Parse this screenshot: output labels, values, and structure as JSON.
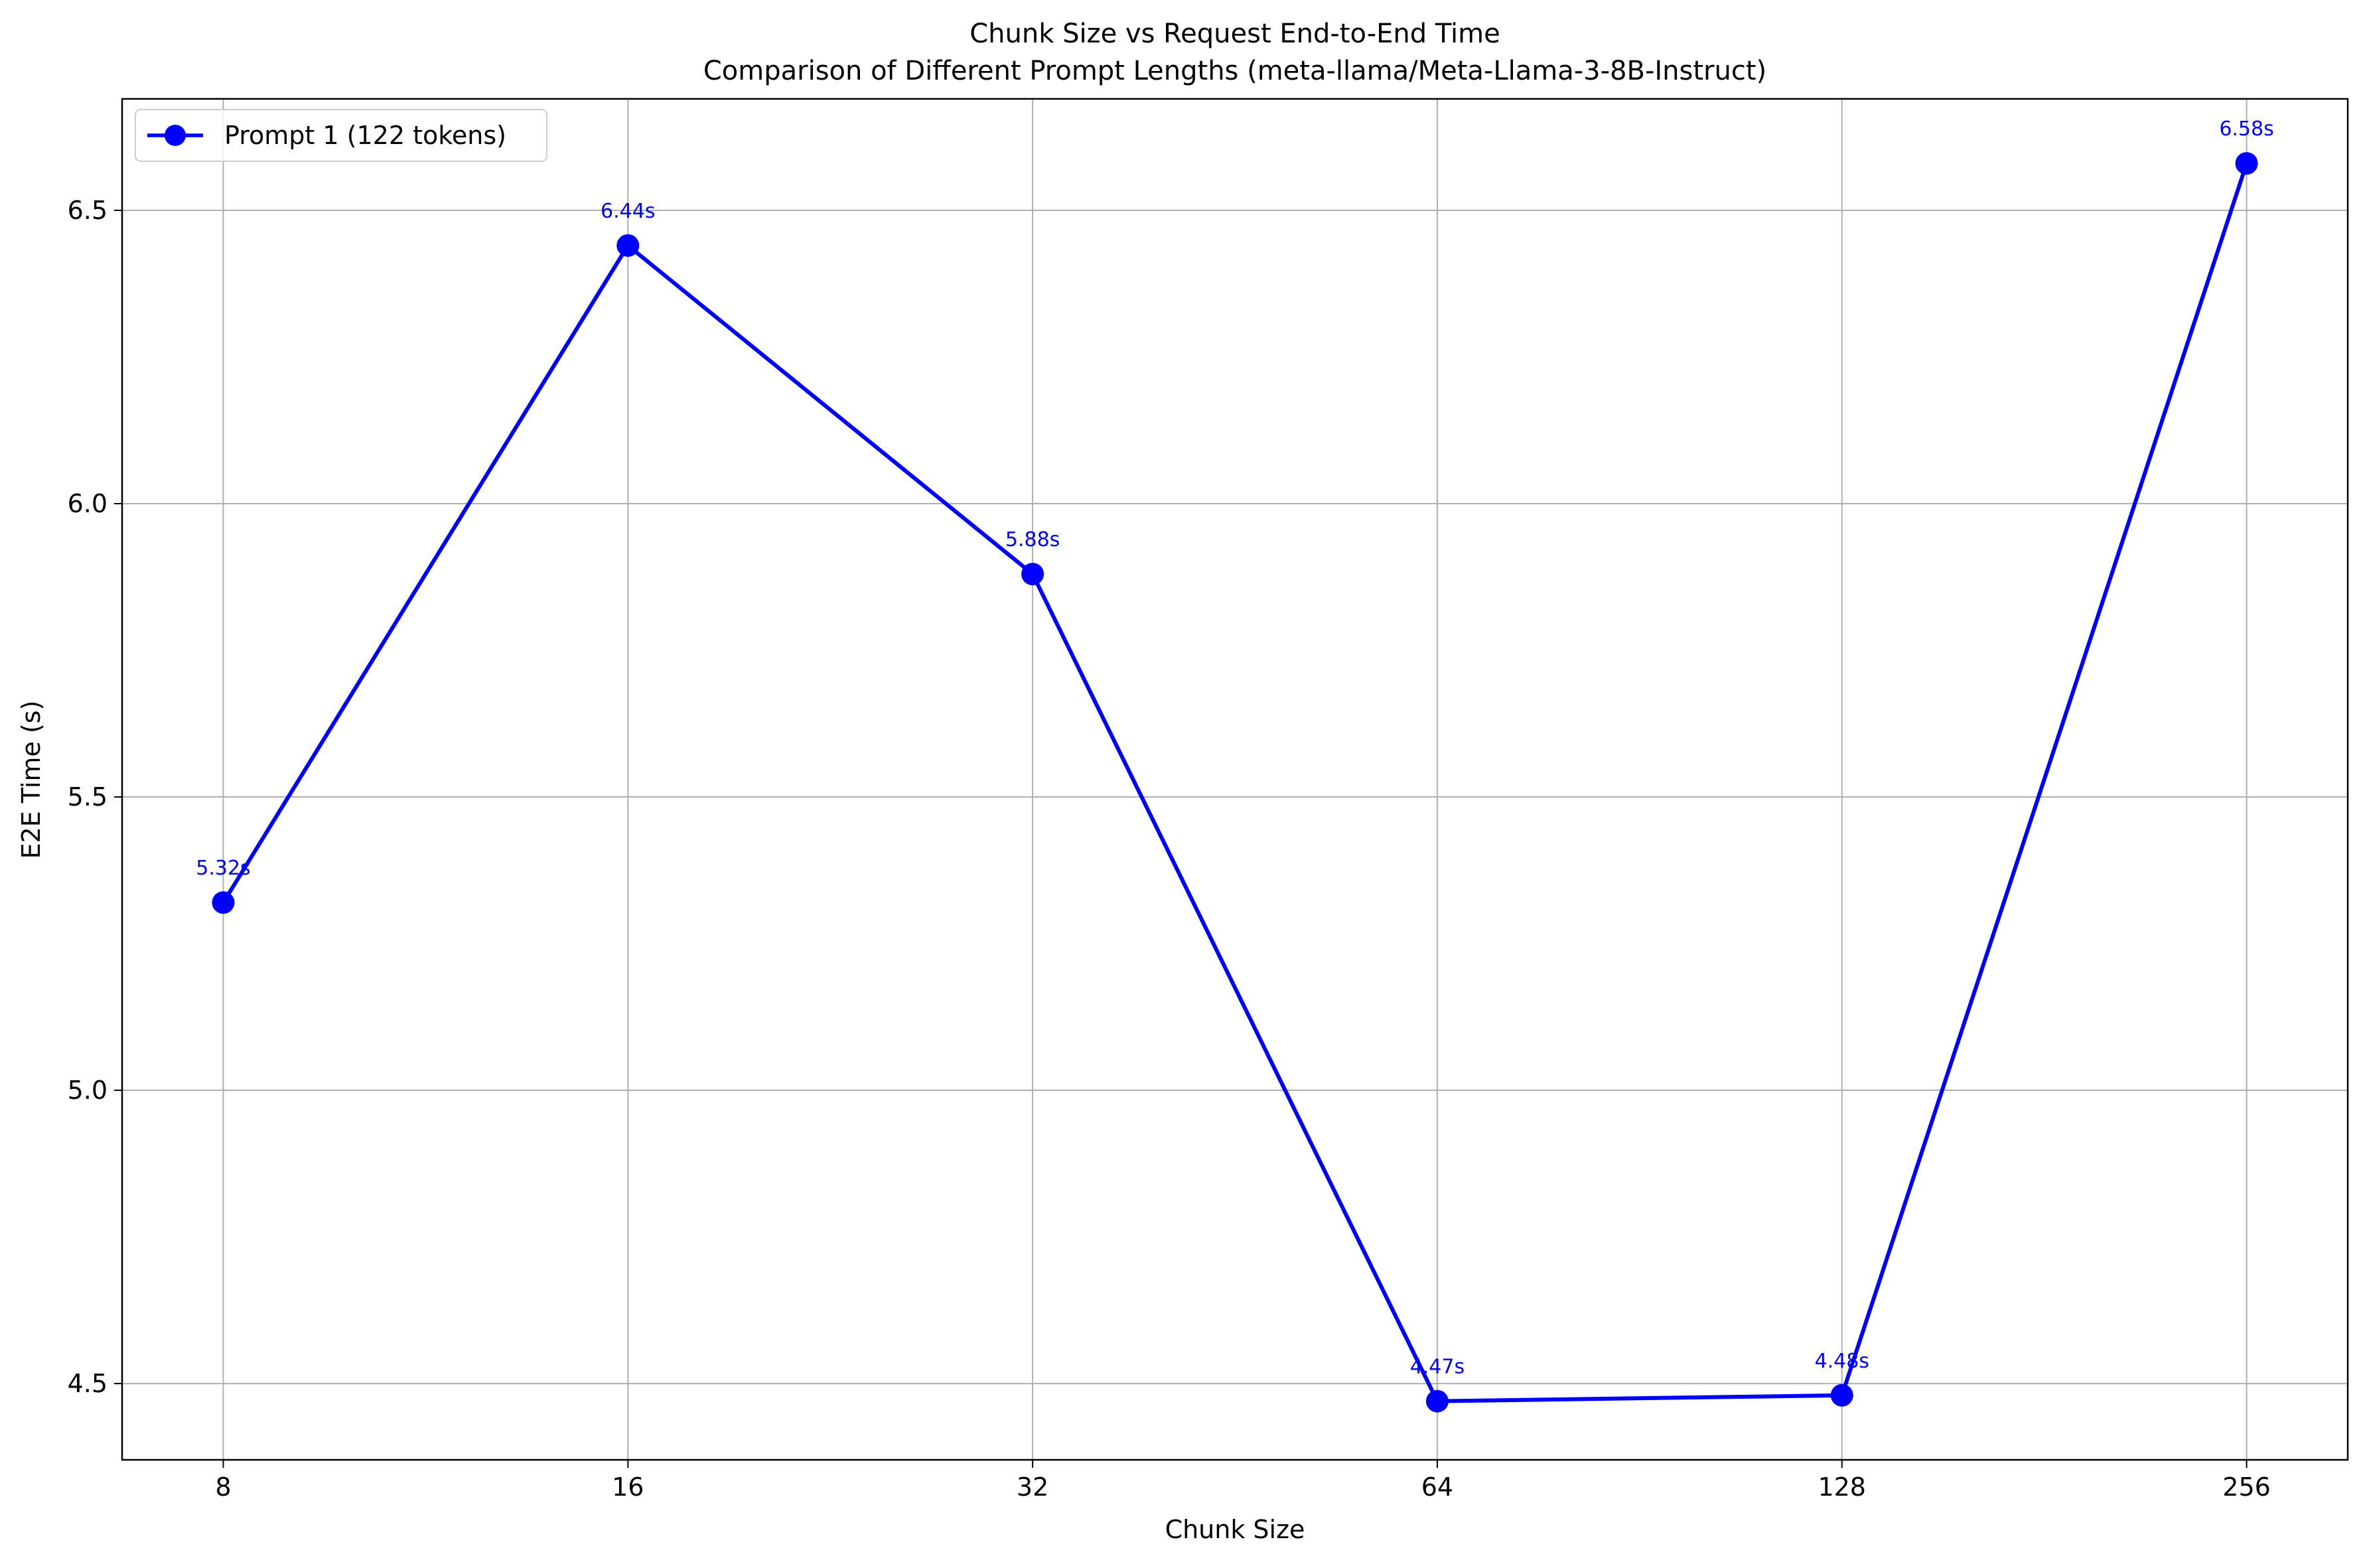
{
  "chart_data": {
    "type": "line",
    "title": "Chunk Size vs Request End-to-End Time",
    "subtitle": "Comparison of Different Prompt Lengths (meta-llama/Meta-Llama-3-8B-Instruct)",
    "xlabel": "Chunk Size",
    "ylabel": "E2E Time (s)",
    "x_scale": "log2",
    "categories": [
      "8",
      "16",
      "32",
      "64",
      "128",
      "256"
    ],
    "x": [
      8,
      16,
      32,
      64,
      128,
      256
    ],
    "ylim": [
      4.37,
      6.69
    ],
    "yticks": [
      4.5,
      5.0,
      5.5,
      6.0,
      6.5
    ],
    "ytick_labels": [
      "4.5",
      "5.0",
      "5.5",
      "6.0",
      "6.5"
    ],
    "grid": true,
    "legend_position": "upper-left",
    "series": [
      {
        "name": "Prompt 1 (122 tokens)",
        "color": "#0000ff",
        "marker": "circle",
        "values": [
          5.32,
          6.44,
          5.88,
          4.47,
          4.48,
          6.58
        ],
        "point_labels": [
          "5.32s",
          "6.44s",
          "5.88s",
          "4.47s",
          "4.48s",
          "6.58s"
        ]
      }
    ]
  }
}
